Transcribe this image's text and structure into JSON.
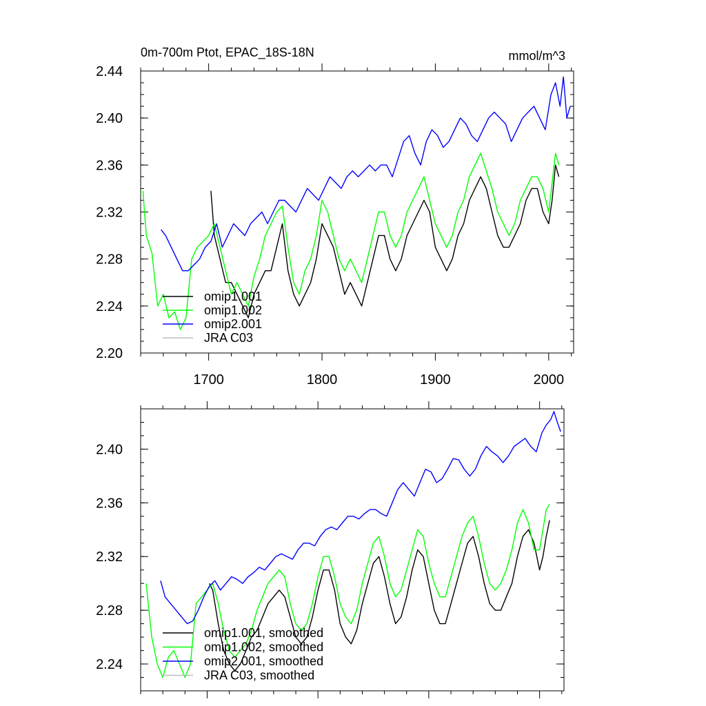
{
  "chart_data": [
    {
      "type": "line",
      "title": "0m-700m Ptot, EPAC_18S-18N",
      "units": "mmol/m^3",
      "xlim": [
        1640,
        2022
      ],
      "ylim": [
        2.2,
        2.44
      ],
      "xticks": [
        1700,
        1800,
        1900,
        2000
      ],
      "yticks": [
        2.2,
        2.24,
        2.28,
        2.32,
        2.36,
        2.4,
        2.44
      ],
      "ytick_labels": [
        "2.20",
        "2.24",
        "2.28",
        "2.32",
        "2.36",
        "2.40",
        "2.44"
      ],
      "show_x_tick_labels": true,
      "legend": {
        "placement": "lower-left"
      },
      "series": [
        {
          "name": "omip1.001",
          "color": "#000000",
          "x": [
            1702,
            1705,
            1710,
            1715,
            1720,
            1725,
            1730,
            1735,
            1740,
            1745,
            1750,
            1755,
            1760,
            1765,
            1770,
            1775,
            1780,
            1785,
            1790,
            1795,
            1800,
            1805,
            1810,
            1815,
            1820,
            1825,
            1830,
            1835,
            1840,
            1845,
            1850,
            1855,
            1860,
            1865,
            1870,
            1875,
            1880,
            1885,
            1890,
            1895,
            1900,
            1905,
            1910,
            1915,
            1920,
            1925,
            1930,
            1935,
            1940,
            1945,
            1950,
            1955,
            1960,
            1965,
            1970,
            1975,
            1980,
            1985,
            1990,
            1995,
            2000,
            2003,
            2006,
            2009
          ],
          "y": [
            2.338,
            2.3,
            2.28,
            2.26,
            2.26,
            2.25,
            2.24,
            2.23,
            2.25,
            2.26,
            2.27,
            2.27,
            2.29,
            2.31,
            2.27,
            2.25,
            2.24,
            2.25,
            2.26,
            2.28,
            2.31,
            2.3,
            2.29,
            2.27,
            2.25,
            2.26,
            2.25,
            2.24,
            2.26,
            2.28,
            2.3,
            2.3,
            2.28,
            2.27,
            2.28,
            2.3,
            2.31,
            2.32,
            2.33,
            2.32,
            2.29,
            2.28,
            2.27,
            2.28,
            2.3,
            2.31,
            2.33,
            2.34,
            2.35,
            2.34,
            2.32,
            2.3,
            2.29,
            2.29,
            2.3,
            2.31,
            2.33,
            2.34,
            2.34,
            2.32,
            2.31,
            2.33,
            2.36,
            2.35
          ]
        },
        {
          "name": "omip1.002",
          "color": "#00ff00",
          "x": [
            1642,
            1645,
            1650,
            1655,
            1660,
            1665,
            1670,
            1675,
            1680,
            1685,
            1690,
            1695,
            1700,
            1705,
            1710,
            1715,
            1720,
            1725,
            1730,
            1735,
            1740,
            1745,
            1750,
            1755,
            1760,
            1765,
            1770,
            1775,
            1780,
            1785,
            1790,
            1795,
            1800,
            1805,
            1810,
            1815,
            1820,
            1825,
            1830,
            1835,
            1840,
            1845,
            1850,
            1855,
            1860,
            1865,
            1870,
            1875,
            1880,
            1885,
            1890,
            1895,
            1900,
            1905,
            1910,
            1915,
            1920,
            1925,
            1930,
            1935,
            1940,
            1945,
            1950,
            1955,
            1960,
            1965,
            1970,
            1975,
            1980,
            1985,
            1990,
            1995,
            2000,
            2003,
            2006,
            2009
          ],
          "y": [
            2.338,
            2.3,
            2.285,
            2.24,
            2.25,
            2.23,
            2.235,
            2.22,
            2.23,
            2.28,
            2.29,
            2.295,
            2.3,
            2.31,
            2.29,
            2.27,
            2.25,
            2.26,
            2.25,
            2.24,
            2.265,
            2.28,
            2.3,
            2.31,
            2.32,
            2.325,
            2.29,
            2.26,
            2.25,
            2.27,
            2.28,
            2.3,
            2.33,
            2.32,
            2.3,
            2.28,
            2.27,
            2.28,
            2.27,
            2.26,
            2.28,
            2.3,
            2.32,
            2.32,
            2.3,
            2.29,
            2.3,
            2.32,
            2.33,
            2.34,
            2.35,
            2.33,
            2.31,
            2.3,
            2.29,
            2.3,
            2.32,
            2.33,
            2.35,
            2.36,
            2.37,
            2.355,
            2.34,
            2.32,
            2.31,
            2.3,
            2.31,
            2.33,
            2.34,
            2.35,
            2.35,
            2.34,
            2.32,
            2.345,
            2.37,
            2.36
          ]
        },
        {
          "name": "omip2.001",
          "color": "#0000ff",
          "x": [
            1658,
            1662,
            1667,
            1672,
            1677,
            1682,
            1687,
            1692,
            1697,
            1702,
            1707,
            1712,
            1717,
            1722,
            1727,
            1732,
            1737,
            1742,
            1747,
            1752,
            1757,
            1762,
            1767,
            1772,
            1777,
            1782,
            1787,
            1792,
            1797,
            1802,
            1807,
            1812,
            1817,
            1822,
            1827,
            1832,
            1837,
            1842,
            1847,
            1852,
            1857,
            1862,
            1867,
            1872,
            1877,
            1882,
            1887,
            1892,
            1897,
            1902,
            1907,
            1912,
            1917,
            1922,
            1927,
            1932,
            1937,
            1942,
            1947,
            1952,
            1957,
            1962,
            1967,
            1972,
            1977,
            1982,
            1987,
            1992,
            1997,
            2002,
            2006,
            2010,
            2013,
            2016,
            2019
          ],
          "y": [
            2.305,
            2.3,
            2.29,
            2.28,
            2.27,
            2.27,
            2.275,
            2.28,
            2.29,
            2.295,
            2.31,
            2.29,
            2.3,
            2.31,
            2.305,
            2.3,
            2.31,
            2.315,
            2.32,
            2.31,
            2.32,
            2.33,
            2.33,
            2.325,
            2.32,
            2.33,
            2.34,
            2.335,
            2.33,
            2.34,
            2.35,
            2.345,
            2.34,
            2.35,
            2.355,
            2.35,
            2.355,
            2.36,
            2.355,
            2.36,
            2.36,
            2.35,
            2.365,
            2.38,
            2.385,
            2.37,
            2.36,
            2.38,
            2.39,
            2.385,
            2.375,
            2.38,
            2.39,
            2.4,
            2.395,
            2.385,
            2.38,
            2.39,
            2.4,
            2.405,
            2.4,
            2.395,
            2.38,
            2.39,
            2.4,
            2.405,
            2.41,
            2.4,
            2.39,
            2.42,
            2.43,
            2.41,
            2.435,
            2.4,
            2.41
          ]
        },
        {
          "name": "JRA C03",
          "color": "#bdbdbd",
          "x": [],
          "y": []
        }
      ]
    },
    {
      "type": "line",
      "xlim": [
        1640,
        2022
      ],
      "ylim": [
        2.22,
        2.43
      ],
      "xticks": [
        1700,
        1800,
        1900,
        2000
      ],
      "yticks": [
        2.24,
        2.28,
        2.32,
        2.36,
        2.4
      ],
      "ytick_labels": [
        "2.24",
        "2.28",
        "2.32",
        "2.36",
        "2.40"
      ],
      "show_x_tick_labels": false,
      "legend": {
        "placement": "lower-left"
      },
      "series": [
        {
          "name": "omip1.001, smoothed",
          "color": "#000000",
          "x": [
            1702,
            1705,
            1710,
            1715,
            1720,
            1725,
            1730,
            1735,
            1740,
            1745,
            1750,
            1755,
            1760,
            1765,
            1770,
            1775,
            1780,
            1785,
            1790,
            1795,
            1800,
            1805,
            1810,
            1815,
            1820,
            1825,
            1830,
            1835,
            1840,
            1845,
            1850,
            1855,
            1860,
            1865,
            1870,
            1875,
            1880,
            1885,
            1890,
            1895,
            1900,
            1905,
            1910,
            1915,
            1920,
            1925,
            1930,
            1935,
            1940,
            1945,
            1950,
            1955,
            1960,
            1965,
            1970,
            1975,
            1980,
            1985,
            1990,
            1995,
            2000,
            2003,
            2006,
            2009
          ],
          "y": [
            2.3,
            2.295,
            2.27,
            2.25,
            2.24,
            2.235,
            2.24,
            2.25,
            2.26,
            2.265,
            2.275,
            2.285,
            2.29,
            2.295,
            2.29,
            2.275,
            2.26,
            2.255,
            2.26,
            2.275,
            2.295,
            2.31,
            2.31,
            2.295,
            2.27,
            2.26,
            2.255,
            2.265,
            2.285,
            2.3,
            2.315,
            2.32,
            2.305,
            2.285,
            2.27,
            2.275,
            2.29,
            2.31,
            2.325,
            2.32,
            2.3,
            2.28,
            2.27,
            2.27,
            2.285,
            2.3,
            2.315,
            2.33,
            2.335,
            2.32,
            2.3,
            2.285,
            2.28,
            2.28,
            2.29,
            2.3,
            2.32,
            2.335,
            2.34,
            2.33,
            2.31,
            2.32,
            2.335,
            2.347
          ]
        },
        {
          "name": "omip1.002, smoothed",
          "color": "#00ff00",
          "x": [
            1645,
            1650,
            1655,
            1660,
            1665,
            1670,
            1675,
            1680,
            1685,
            1690,
            1695,
            1700,
            1705,
            1710,
            1715,
            1720,
            1725,
            1730,
            1735,
            1740,
            1745,
            1750,
            1755,
            1760,
            1765,
            1770,
            1775,
            1780,
            1785,
            1790,
            1795,
            1800,
            1805,
            1810,
            1815,
            1820,
            1825,
            1830,
            1835,
            1840,
            1845,
            1850,
            1855,
            1860,
            1865,
            1870,
            1875,
            1880,
            1885,
            1890,
            1895,
            1900,
            1905,
            1910,
            1915,
            1920,
            1925,
            1930,
            1935,
            1940,
            1945,
            1950,
            1955,
            1960,
            1965,
            1970,
            1975,
            1980,
            1985,
            1990,
            1995,
            2000,
            2003,
            2006,
            2009
          ],
          "y": [
            2.3,
            2.26,
            2.24,
            2.23,
            2.245,
            2.25,
            2.24,
            2.23,
            2.24,
            2.285,
            2.29,
            2.295,
            2.3,
            2.285,
            2.265,
            2.25,
            2.245,
            2.25,
            2.255,
            2.265,
            2.28,
            2.29,
            2.3,
            2.305,
            2.31,
            2.305,
            2.285,
            2.27,
            2.265,
            2.27,
            2.285,
            2.305,
            2.32,
            2.32,
            2.305,
            2.285,
            2.275,
            2.27,
            2.28,
            2.3,
            2.315,
            2.33,
            2.335,
            2.32,
            2.3,
            2.29,
            2.295,
            2.31,
            2.325,
            2.34,
            2.335,
            2.315,
            2.3,
            2.29,
            2.29,
            2.305,
            2.32,
            2.335,
            2.345,
            2.35,
            2.335,
            2.315,
            2.3,
            2.295,
            2.3,
            2.31,
            2.325,
            2.345,
            2.355,
            2.345,
            2.325,
            2.325,
            2.34,
            2.355,
            2.359
          ]
        },
        {
          "name": "omip2.001, smoothed",
          "color": "#0000ff",
          "x": [
            1658,
            1662,
            1667,
            1672,
            1677,
            1682,
            1687,
            1692,
            1697,
            1702,
            1707,
            1712,
            1717,
            1722,
            1727,
            1732,
            1737,
            1742,
            1747,
            1752,
            1757,
            1762,
            1767,
            1772,
            1777,
            1782,
            1787,
            1792,
            1797,
            1802,
            1807,
            1812,
            1817,
            1822,
            1827,
            1832,
            1837,
            1842,
            1847,
            1852,
            1857,
            1862,
            1867,
            1872,
            1877,
            1882,
            1887,
            1892,
            1897,
            1902,
            1907,
            1912,
            1917,
            1922,
            1927,
            1932,
            1937,
            1942,
            1947,
            1952,
            1957,
            1962,
            1967,
            1972,
            1977,
            1982,
            1987,
            1992,
            1997,
            2002,
            2006,
            2010,
            2013,
            2016,
            2019
          ],
          "y": [
            2.302,
            2.29,
            2.285,
            2.28,
            2.275,
            2.27,
            2.272,
            2.28,
            2.29,
            2.298,
            2.302,
            2.295,
            2.3,
            2.305,
            2.303,
            2.3,
            2.305,
            2.308,
            2.312,
            2.31,
            2.315,
            2.32,
            2.322,
            2.32,
            2.318,
            2.325,
            2.33,
            2.33,
            2.328,
            2.335,
            2.34,
            2.342,
            2.34,
            2.345,
            2.35,
            2.35,
            2.348,
            2.352,
            2.355,
            2.355,
            2.352,
            2.35,
            2.36,
            2.37,
            2.375,
            2.37,
            2.365,
            2.375,
            2.385,
            2.383,
            2.375,
            2.378,
            2.385,
            2.393,
            2.392,
            2.385,
            2.38,
            2.385,
            2.395,
            2.402,
            2.398,
            2.395,
            2.39,
            2.395,
            2.402,
            2.405,
            2.408,
            2.402,
            2.398,
            2.412,
            2.418,
            2.422,
            2.428,
            2.42,
            2.413
          ]
        },
        {
          "name": "JRA C03, smoothed",
          "color": "#bdbdbd",
          "x": [],
          "y": []
        }
      ]
    }
  ]
}
